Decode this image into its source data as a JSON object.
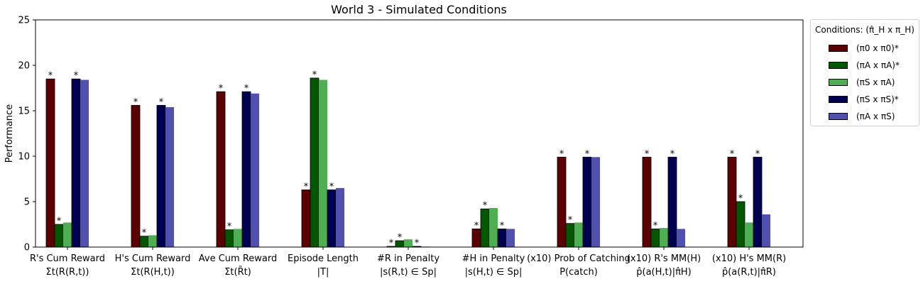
{
  "chart_data": {
    "type": "bar",
    "title": "World 3 - Simulated Conditions",
    "ylabel": "Performance",
    "ylim": [
      0,
      25
    ],
    "yticks": [
      0,
      5,
      10,
      15,
      20,
      25
    ],
    "grid": false,
    "legend": {
      "title": "Conditions: (π̂_H x π_H)",
      "placement": "outside-top-right"
    },
    "categories": [
      {
        "line1": "R's Cum Reward",
        "line2": "Σt(R(R,t))"
      },
      {
        "line1": "H's Cum Reward",
        "line2": "Σt(R(H,t))"
      },
      {
        "line1": "Ave Cum Reward",
        "line2": "Σt(R̄t)"
      },
      {
        "line1": "Episode Length",
        "line2": "|T|"
      },
      {
        "line1": "#R in Penalty",
        "line2": "|s(R,t) ∈ Sp|"
      },
      {
        "line1": "#H in Penalty",
        "line2": "|s(H,t) ∈ Sp|"
      },
      {
        "line1": "(x10) Prob of Catching",
        "line2": "P(catch)"
      },
      {
        "line1": "(x10) R's MM(H)",
        "line2": "p̂(a(H,t)|π̂H)"
      },
      {
        "line1": "(x10) H's MM(R)",
        "line2": "p̂(a(R,t)|π̂R)"
      }
    ],
    "series": [
      {
        "name": "(π0 x π0)*",
        "color": "#5c0000",
        "values": [
          18.5,
          15.6,
          17.1,
          6.3,
          0.08,
          2.0,
          9.9,
          9.9,
          9.9
        ],
        "stars": [
          true,
          true,
          true,
          true,
          true,
          true,
          true,
          true,
          true
        ]
      },
      {
        "name": "(πA x πA)*",
        "color": "#005900",
        "values": [
          2.5,
          1.2,
          1.9,
          18.6,
          0.7,
          4.2,
          2.6,
          2.0,
          5.0
        ],
        "stars": [
          true,
          true,
          true,
          true,
          true,
          true,
          true,
          true,
          true
        ]
      },
      {
        "name": "(πS x πA)",
        "color": "#4caf50",
        "values": [
          2.7,
          1.3,
          2.0,
          18.4,
          0.85,
          4.3,
          2.7,
          2.1,
          2.7
        ],
        "stars": [
          false,
          false,
          false,
          false,
          false,
          false,
          false,
          false,
          false
        ]
      },
      {
        "name": "(πS x πS)*",
        "color": "#000052",
        "values": [
          18.5,
          15.6,
          17.1,
          6.3,
          0.08,
          2.0,
          9.9,
          9.9,
          9.9
        ],
        "stars": [
          true,
          true,
          true,
          true,
          true,
          true,
          true,
          true,
          true
        ]
      },
      {
        "name": "(πA x πS)",
        "color": "#5050b0",
        "values": [
          18.4,
          15.4,
          16.9,
          6.5,
          0.05,
          2.0,
          9.9,
          2.0,
          3.6
        ],
        "stars": [
          false,
          false,
          false,
          false,
          false,
          false,
          false,
          false,
          false
        ]
      }
    ]
  }
}
